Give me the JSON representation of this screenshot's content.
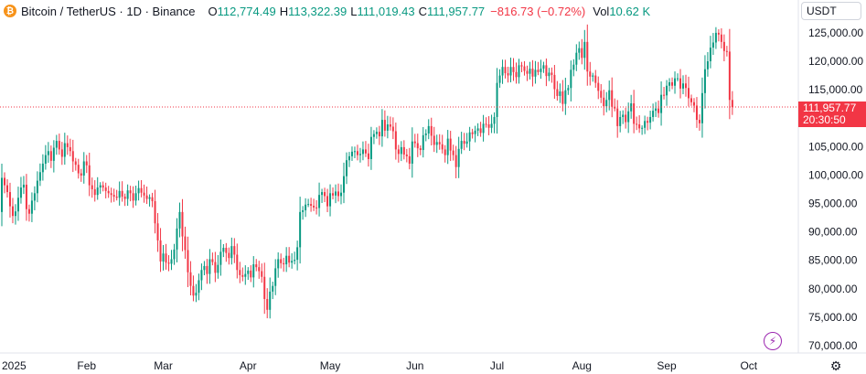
{
  "legend": {
    "symbol": "Bitcoin / TetherUS · 1D · Binance",
    "o_label": "O",
    "o_value": "112,774.49",
    "h_label": "H",
    "h_value": "113,322.39",
    "l_label": "L",
    "l_value": "111,019.43",
    "c_label": "C",
    "c_value": "111,957.77",
    "change": "−816.73 (−0.72%)",
    "vol_label": "Vol",
    "vol_value": "10.62 K"
  },
  "currency": "USDT",
  "last_price": {
    "price": "111,957.77",
    "countdown": "20:30:50"
  },
  "icons": {
    "logo": "bitcoin-icon",
    "bolt": "lightning-icon",
    "settings": "gear-icon"
  },
  "colors": {
    "up": "#089981",
    "down": "#f23645",
    "last_line": "#f23645"
  },
  "chart_data": {
    "type": "candlestick",
    "y_ticks": [
      {
        "value": 125000,
        "label": "125,000.00"
      },
      {
        "value": 120000,
        "label": "120,000.00"
      },
      {
        "value": 115000,
        "label": "115,000.00"
      },
      {
        "value": 110000,
        "label": "110,000.00"
      },
      {
        "value": 105000,
        "label": "105,000.00"
      },
      {
        "value": 100000,
        "label": "100,000.00"
      },
      {
        "value": 95000,
        "label": "95,000.00"
      },
      {
        "value": 90000,
        "label": "90,000.00"
      },
      {
        "value": 85000,
        "label": "85,000.00"
      },
      {
        "value": 80000,
        "label": "80,000.00"
      },
      {
        "value": 75000,
        "label": "75,000.00"
      },
      {
        "value": 70000,
        "label": "70,000.00"
      }
    ],
    "x_ticks": [
      {
        "label": "2025",
        "day": 0
      },
      {
        "label": "Feb",
        "day": 31
      },
      {
        "label": "Mar",
        "day": 59
      },
      {
        "label": "Apr",
        "day": 90
      },
      {
        "label": "May",
        "day": 120
      },
      {
        "label": "Jun",
        "day": 151
      },
      {
        "label": "Jul",
        "day": 181
      },
      {
        "label": "Aug",
        "day": 212
      },
      {
        "label": "Sep",
        "day": 243
      },
      {
        "label": "Oct",
        "day": 273
      }
    ],
    "last_close": 111957.77,
    "closes": [
      99500,
      98200,
      97000,
      94500,
      92800,
      93600,
      96000,
      97800,
      98300,
      94000,
      93200,
      95500,
      96800,
      99000,
      100500,
      102000,
      103500,
      104200,
      102500,
      104800,
      106000,
      104500,
      103200,
      105600,
      104900,
      104200,
      102400,
      101800,
      100300,
      99900,
      102400,
      101700,
      98200,
      97500,
      96500,
      97800,
      98200,
      97800,
      97200,
      96800,
      96500,
      96200,
      96000,
      97200,
      96200,
      95800,
      97300,
      96800,
      95500,
      96800,
      97700,
      96900,
      96400,
      95800,
      96100,
      95400,
      91500,
      88500,
      84800,
      86200,
      84600,
      84400,
      85200,
      86900,
      90600,
      93500,
      89200,
      86800,
      82900,
      80500,
      78800,
      79300,
      81500,
      83300,
      84000,
      82600,
      85200,
      84700,
      82800,
      84200,
      86500,
      87200,
      86300,
      85400,
      87500,
      86000,
      83300,
      82400,
      82100,
      82600,
      83200,
      82000,
      84300,
      83800,
      83100,
      82100,
      78200,
      76300,
      79500,
      80500,
      83600,
      85200,
      84500,
      84300,
      85800,
      84600,
      84900,
      85100,
      87300,
      93500,
      93800,
      94800,
      94900,
      94600,
      94300,
      94200,
      96500,
      97000,
      96300,
      94500,
      96800,
      96400,
      97100,
      96300,
      96900,
      99800,
      102600,
      103300,
      104100,
      104200,
      103500,
      103700,
      104500,
      103800,
      102800,
      106700,
      107200,
      107600,
      106800,
      109700,
      107800,
      108900,
      108500,
      107700,
      104500,
      103700,
      104900,
      103600,
      103300,
      102000,
      105900,
      105600,
      104700,
      104400,
      107000,
      107300,
      108600,
      106900,
      105300,
      105800,
      105400,
      104500,
      103500,
      106400,
      104300,
      103500,
      101400,
      104600,
      106000,
      105500,
      105900,
      107500,
      107200,
      107800,
      108200,
      107400,
      109000,
      108900,
      108300,
      109000,
      110200,
      116200,
      117500,
      119000,
      117900,
      117500,
      119000,
      118100,
      117200,
      119300,
      119100,
      118300,
      117800,
      118700,
      117300,
      118500,
      118100,
      118700,
      119300,
      117400,
      118000,
      117600,
      115100,
      113900,
      114700,
      112500,
      114900,
      115300,
      118500,
      119400,
      121500,
      122300,
      120600,
      123400,
      118200,
      117300,
      117500,
      116200,
      114800,
      113600,
      112100,
      113200,
      114900,
      112000,
      111700,
      108600,
      110200,
      110600,
      109300,
      111200,
      112600,
      109000,
      108900,
      108200,
      108300,
      109500,
      109200,
      110200,
      111300,
      111700,
      110900,
      114100,
      114000,
      115700,
      116300,
      115700,
      117000,
      117000,
      115200,
      116100,
      115300,
      113500,
      112800,
      112200,
      109700,
      109100,
      114400,
      118600,
      120000,
      122400,
      123300,
      125000,
      124700,
      123400,
      121800,
      121700,
      113200,
      111957.77
    ],
    "hl_note_omitted": false
  }
}
